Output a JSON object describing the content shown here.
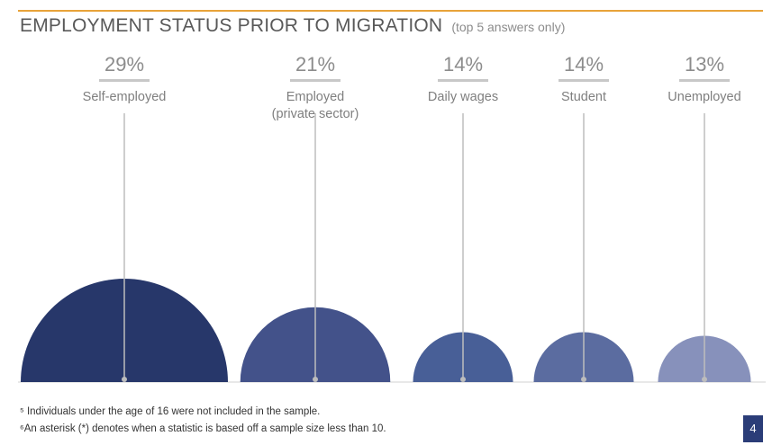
{
  "page": {
    "title": "EMPLOYMENT STATUS PRIOR TO MIGRATION",
    "subtitle": "(top 5 answers only)",
    "footnotes": [
      "⁵ Individuals under the age of 16 were not included in the sample.",
      "⁶An asterisk (*) denotes when a statistic is based off a sample size less than 10."
    ],
    "page_number": "4"
  },
  "chart_data": {
    "type": "bar",
    "style": "semicircle-bubbles",
    "title": "EMPLOYMENT STATUS PRIOR TO MIGRATION",
    "subtitle": "(top 5 answers only)",
    "unit": "%",
    "categories": [
      "Self-employed",
      "Employed (private sector)",
      "Daily wages",
      "Student",
      "Unemployed"
    ],
    "category_lines": [
      [
        "Self-employed"
      ],
      [
        "Employed",
        "(private sector)"
      ],
      [
        "Daily wages"
      ],
      [
        "Student"
      ],
      [
        "Unemployed"
      ]
    ],
    "values": [
      29,
      21,
      14,
      14,
      13
    ],
    "value_labels": [
      "29%",
      "21%",
      "14%",
      "14%",
      "13%"
    ],
    "colors": [
      "#27376a",
      "#43528a",
      "#485f97",
      "#5b6ca0",
      "#8791bb"
    ],
    "xlabel": "",
    "ylabel": ""
  }
}
